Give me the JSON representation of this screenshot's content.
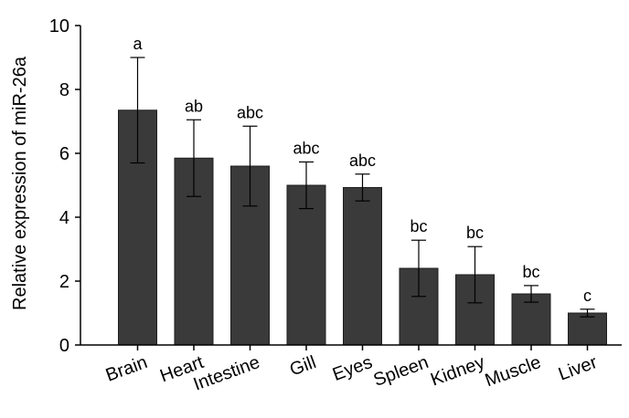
{
  "chart_data": {
    "type": "bar",
    "title": "",
    "xlabel": "",
    "ylabel": "Relative expression of miR-26a",
    "ylim": [
      0,
      10
    ],
    "yticks": [
      0,
      2,
      4,
      6,
      8,
      10
    ],
    "grid": false,
    "categories": [
      "Brain",
      "Heart",
      "Intestine",
      "Gill",
      "Eyes",
      "Spleen",
      "Kidney",
      "Muscle",
      "Liver"
    ],
    "series": [
      {
        "values": [
          7.35,
          5.85,
          5.6,
          5.0,
          4.93,
          2.4,
          2.2,
          1.6,
          1.0
        ],
        "error": [
          1.65,
          1.2,
          1.25,
          0.73,
          0.42,
          0.88,
          0.88,
          0.26,
          0.12
        ],
        "significance": [
          "a",
          "ab",
          "abc",
          "abc",
          "abc",
          "bc",
          "bc",
          "bc",
          "c"
        ]
      }
    ],
    "colors": {
      "bar": "#3a3a3a",
      "axis": "#000000"
    }
  }
}
